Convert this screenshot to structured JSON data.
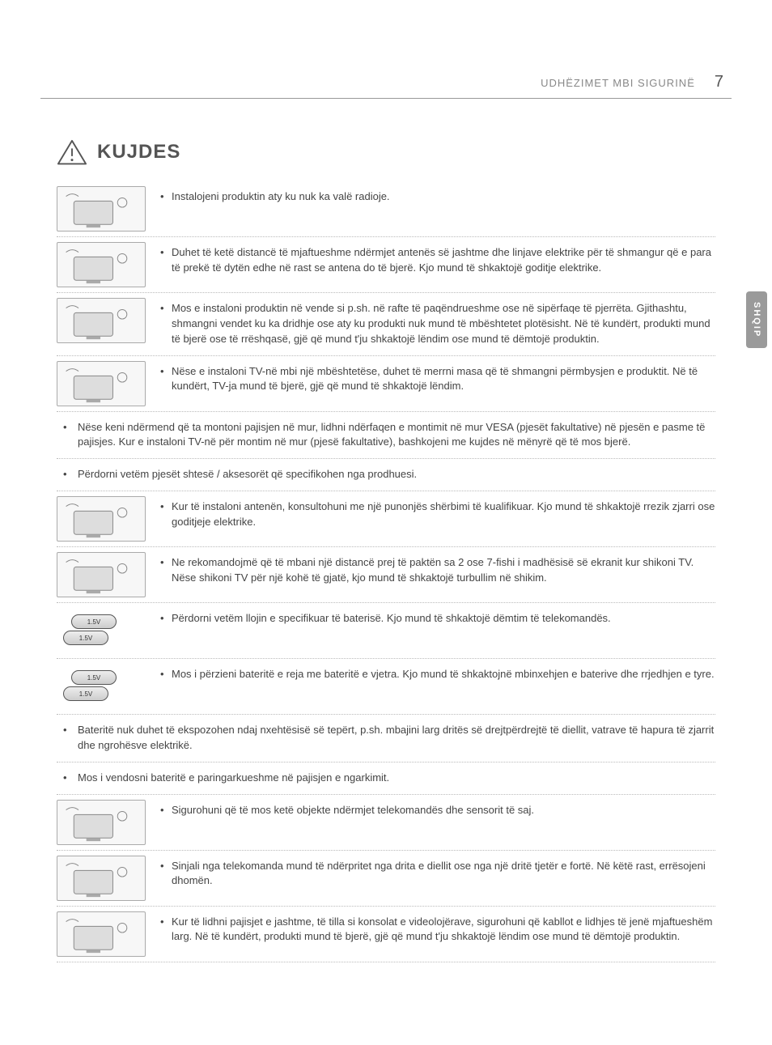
{
  "header": {
    "title": "UDHËZIMET MBI SIGURINË",
    "page_number": "7"
  },
  "side_tab": "SHQIP",
  "section": {
    "title": "KUJDES"
  },
  "colors": {
    "text": "#444444",
    "muted": "#888888",
    "rule": "#999999",
    "dotted": "#bbbbbb",
    "tab_bg": "#9a9a9a",
    "tab_text": "#ffffff",
    "page_bg": "#ffffff"
  },
  "typography": {
    "body_size_pt": 10,
    "title_size_pt": 18,
    "header_size_pt": 10,
    "page_num_size_pt": 15
  },
  "battery_label": "1.5V",
  "rows": [
    {
      "img": true,
      "text": "Instalojeni produktin aty ku nuk ka valë radioje."
    },
    {
      "img": true,
      "text": "Duhet të ketë distancë të mjaftueshme ndërmjet antenës së jashtme dhe linjave elektrike për të shmangur që e para të prekë të dytën edhe në rast se antena do të bjerë. Kjo mund të shkaktojë goditje elektrike."
    },
    {
      "img": true,
      "text": "Mos e instaloni produktin në vende si p.sh. në rafte të paqëndrueshme ose në sipërfaqe të pjerrëta. Gjithashtu, shmangni vendet ku ka dridhje ose aty ku produkti nuk mund të mbështetet plotësisht. Në të kundërt, produkti mund të bjerë ose të rrëshqasë, gjë që mund t'ju shkaktojë lëndim ose mund të dëmtojë produktin."
    },
    {
      "img": true,
      "text": "Nëse e instaloni TV-në mbi një mbështetëse, duhet të merrni masa që të shmangni përmbysjen e produktit. Në të kundërt, TV-ja mund të bjerë, gjë që mund të shkaktojë lëndim."
    },
    {
      "img": false,
      "text": "Nëse keni ndërmend që ta montoni pajisjen në mur, lidhni ndërfaqen e montimit në mur VESA (pjesët fakultative) në pjesën e pasme të pajisjes. Kur e instaloni TV-në për montim në mur (pjesë fakultative), bashkojeni me kujdes në mënyrë që të mos bjerë."
    },
    {
      "img": false,
      "text": "Përdorni vetëm pjesët shtesë / aksesorët që specifikohen nga prodhuesi."
    },
    {
      "img": true,
      "text": "Kur të instaloni antenën, konsultohuni me një punonjës shërbimi të kualifikuar. Kjo mund të shkaktojë rrezik zjarri ose goditjeje elektrike."
    },
    {
      "img": true,
      "text": "Ne rekomandojmë që të mbani një distancë prej të paktën sa 2 ose 7-fishi i madhësisë së ekranit kur shikoni TV. Nëse shikoni TV për një kohë të gjatë, kjo mund të shkaktojë turbullim në shikim."
    },
    {
      "img": true,
      "text": "Përdorni vetëm llojin e specifikuar të baterisë. Kjo mund të shkaktojë dëmtim të telekomandës.",
      "thumb": "batt"
    },
    {
      "img": true,
      "text": "Mos i përzieni bateritë e reja me bateritë e vjetra. Kjo mund të shkaktojnë mbinxehjen e baterive dhe rrjedhjen e tyre.",
      "thumb": "batt"
    },
    {
      "img": false,
      "text": "Bateritë nuk duhet të ekspozohen ndaj nxehtësisë së tepërt, p.sh. mbajini larg dritës së drejtpërdrejtë të diellit, vatrave të hapura të zjarrit dhe ngrohësve elektrikë."
    },
    {
      "img": false,
      "text": "Mos i vendosni bateritë e paringarkueshme në pajisjen e ngarkimit."
    },
    {
      "img": true,
      "text": "Sigurohuni që të mos ketë objekte ndërmjet telekomandës dhe sensorit të saj."
    },
    {
      "img": true,
      "text": "Sinjali nga telekomanda mund të ndërpritet nga drita e diellit ose nga një dritë tjetër e fortë. Në këtë rast, errësojeni dhomën."
    },
    {
      "img": true,
      "text": "Kur të lidhni pajisjet e jashtme, të tilla si konsolat e videolojërave, sigurohuni që kabllot e lidhjes të jenë mjaftueshëm larg. Në të kundërt, produkti mund të bjerë, gjë që mund t'ju shkaktojë lëndim ose mund të dëmtojë produktin."
    }
  ]
}
